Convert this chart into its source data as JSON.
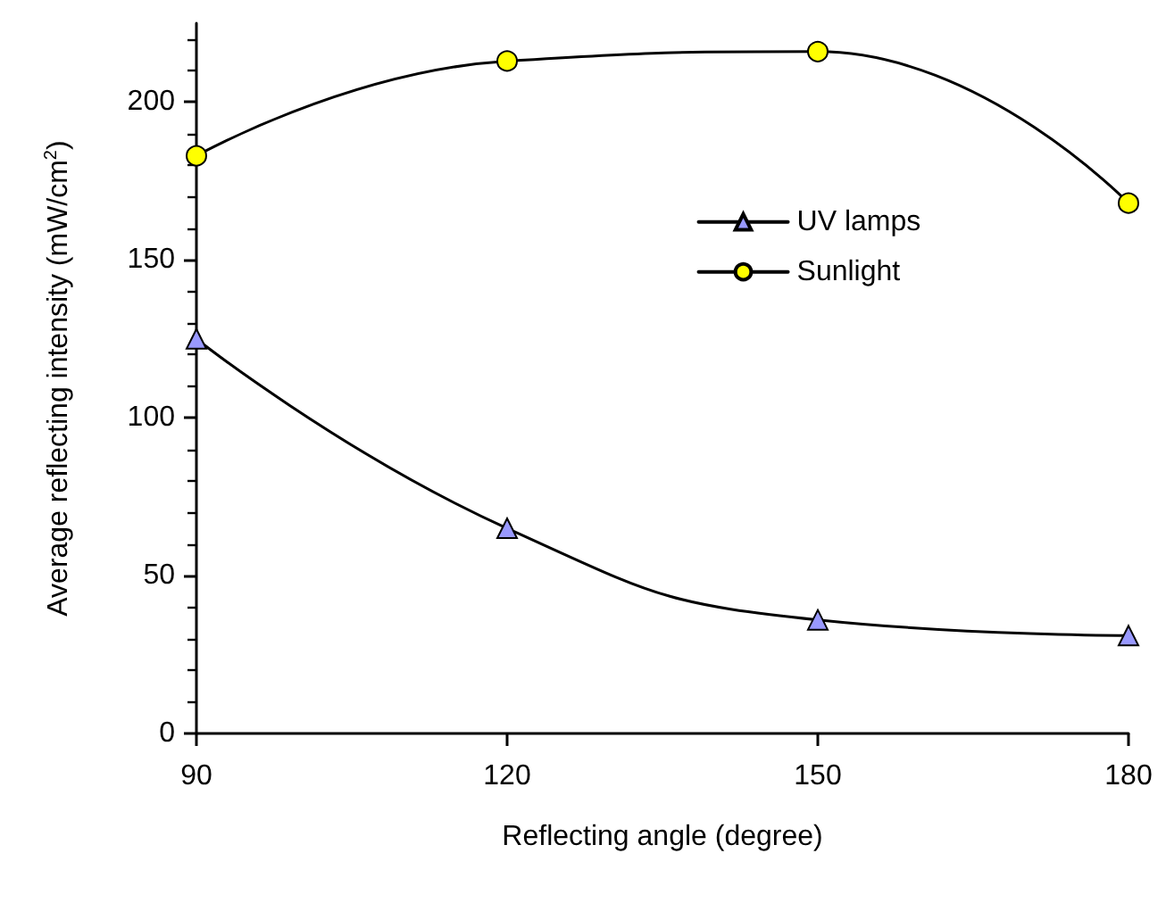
{
  "chart_data": {
    "type": "line",
    "xlabel": "Reflecting angle (degree)",
    "ylabel": "Average reflecting intensity (mW/cm$^{2}$)",
    "x": [
      90,
      120,
      150,
      180
    ],
    "series": [
      {
        "name": "UV lamps",
        "color": "#9999ff",
        "marker": "triangle",
        "values": [
          125,
          65,
          36,
          31
        ]
      },
      {
        "name": "Sunlight",
        "color": "#ffff00",
        "marker": "circle",
        "values": [
          183,
          213,
          216,
          168
        ]
      }
    ],
    "xlim": [
      90,
      180
    ],
    "xticks": [
      90,
      120,
      150,
      180
    ],
    "ylim": [
      0,
      225
    ],
    "yticks": [
      0,
      50,
      100,
      150,
      200
    ],
    "grid": false,
    "legend": "right",
    "line_style": "solid"
  }
}
